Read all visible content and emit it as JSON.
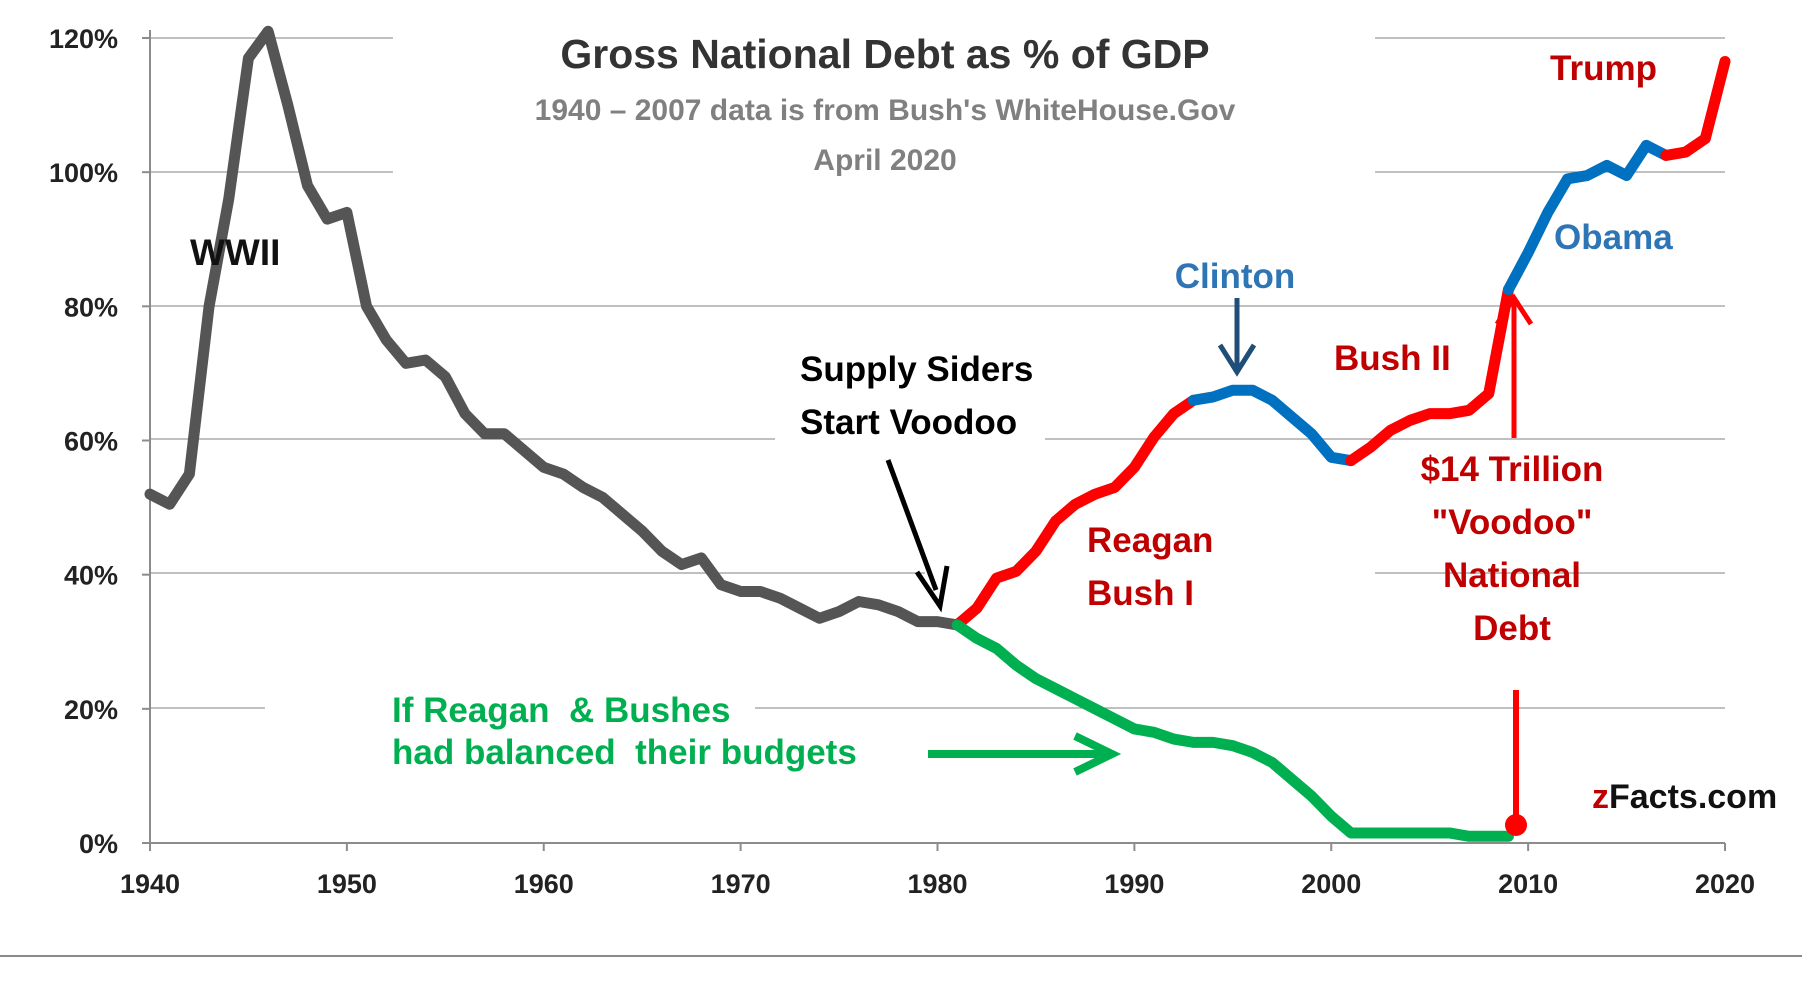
{
  "chart_data": {
    "type": "line",
    "title": "Gross National Debt  as % of GDP",
    "subtitle": "1940 – 2007 data is from Bush's WhiteHouse.Gov",
    "date_note": "April 2020",
    "credit": "zFacts.com",
    "xlim": [
      1940,
      2020
    ],
    "ylim": [
      0,
      120
    ],
    "x_ticks": [
      "1940",
      "1950",
      "1960",
      "1970",
      "1980",
      "1990",
      "2000",
      "2010",
      "2020"
    ],
    "y_ticks": [
      "0%",
      "20%",
      "40%",
      "60%",
      "80%",
      "100%",
      "120%"
    ],
    "grid": true,
    "series": [
      {
        "color": "#555555",
        "points": [
          [
            1940,
            52
          ],
          [
            1941,
            50.5
          ],
          [
            1942,
            55
          ],
          [
            1943,
            80
          ],
          [
            1944,
            96
          ],
          [
            1945,
            117
          ],
          [
            1946,
            121
          ],
          [
            1947,
            110
          ],
          [
            1948,
            98
          ],
          [
            1949,
            93
          ],
          [
            1950,
            94
          ],
          [
            1951,
            80
          ],
          [
            1952,
            75
          ],
          [
            1953,
            71.5
          ],
          [
            1954,
            72
          ],
          [
            1955,
            69.5
          ],
          [
            1956,
            64
          ],
          [
            1957,
            61
          ],
          [
            1958,
            61
          ],
          [
            1959,
            58.5
          ],
          [
            1960,
            56
          ],
          [
            1961,
            55
          ],
          [
            1962,
            53
          ],
          [
            1963,
            51.5
          ],
          [
            1964,
            49
          ],
          [
            1965,
            46.5
          ],
          [
            1966,
            43.5
          ],
          [
            1967,
            41.5
          ],
          [
            1968,
            42.5
          ],
          [
            1969,
            38.5
          ],
          [
            1970,
            37.5
          ],
          [
            1971,
            37.5
          ],
          [
            1972,
            36.5
          ],
          [
            1973,
            35
          ],
          [
            1974,
            33.5
          ],
          [
            1975,
            34.5
          ],
          [
            1976,
            36
          ],
          [
            1977,
            35.5
          ],
          [
            1978,
            34.5
          ],
          [
            1979,
            33
          ],
          [
            1980,
            33
          ],
          [
            1981,
            32.5
          ]
        ]
      },
      {
        "color": "#ff0000",
        "points": [
          [
            1981,
            32.5
          ],
          [
            1982,
            35
          ],
          [
            1983,
            39.5
          ],
          [
            1984,
            40.5
          ],
          [
            1985,
            43.5
          ],
          [
            1986,
            48
          ],
          [
            1987,
            50.5
          ],
          [
            1988,
            52
          ],
          [
            1989,
            53
          ],
          [
            1990,
            56
          ],
          [
            1991,
            60.5
          ],
          [
            1992,
            64
          ],
          [
            1993,
            66
          ]
        ]
      },
      {
        "color": "#0070c0",
        "points": [
          [
            1993,
            66
          ],
          [
            1994,
            66.5
          ],
          [
            1995,
            67.5
          ],
          [
            1996,
            67.5
          ],
          [
            1997,
            66
          ],
          [
            1998,
            63.5
          ],
          [
            1999,
            61
          ],
          [
            2000,
            57.5
          ],
          [
            2001,
            57
          ]
        ]
      },
      {
        "color": "#ff0000",
        "points": [
          [
            2001,
            57
          ],
          [
            2002,
            59
          ],
          [
            2003,
            61.5
          ],
          [
            2004,
            63
          ],
          [
            2005,
            64
          ],
          [
            2006,
            64
          ],
          [
            2007,
            64.5
          ],
          [
            2008,
            67
          ],
          [
            2009,
            82.5
          ]
        ]
      },
      {
        "color": "#0070c0",
        "points": [
          [
            2009,
            82.5
          ],
          [
            2010,
            88
          ],
          [
            2011,
            94
          ],
          [
            2012,
            99
          ],
          [
            2013,
            99.5
          ],
          [
            2014,
            101
          ],
          [
            2015,
            99.5
          ],
          [
            2016,
            104
          ],
          [
            2017,
            102.5
          ]
        ]
      },
      {
        "color": "#ff0000",
        "points": [
          [
            2017,
            102.5
          ],
          [
            2018,
            103
          ],
          [
            2019,
            105
          ],
          [
            2020,
            116.5
          ]
        ]
      },
      {
        "color": "#00b050",
        "points": [
          [
            1981,
            32.5
          ],
          [
            1982,
            30.5
          ],
          [
            1983,
            29
          ],
          [
            1984,
            26.5
          ],
          [
            1985,
            24.5
          ],
          [
            1986,
            23
          ],
          [
            1987,
            21.5
          ],
          [
            1988,
            20
          ],
          [
            1989,
            18.5
          ],
          [
            1990,
            17
          ],
          [
            1991,
            16.5
          ],
          [
            1992,
            15.5
          ],
          [
            1993,
            15
          ],
          [
            1994,
            15
          ],
          [
            1995,
            14.5
          ],
          [
            1996,
            13.5
          ],
          [
            1997,
            12
          ],
          [
            1998,
            9.5
          ],
          [
            1999,
            7
          ],
          [
            2000,
            4
          ],
          [
            2001,
            1.5
          ],
          [
            2002,
            1.5
          ],
          [
            2003,
            1.5
          ],
          [
            2004,
            1.5
          ],
          [
            2005,
            1.5
          ],
          [
            2006,
            1.5
          ],
          [
            2007,
            1
          ],
          [
            2008,
            1
          ],
          [
            2009,
            1
          ]
        ]
      }
    ],
    "annotations": {
      "wwii": "WWII",
      "supply_1": "Supply Siders",
      "supply_2": "Start Voodoo",
      "clinton": "Clinton",
      "reagan": "Reagan",
      "bush1": "Bush I",
      "bush2": "Bush II",
      "obama": "Obama",
      "trump": "Trump",
      "voodoo_1": "$14 Trillion",
      "voodoo_2": "\"Voodoo\"",
      "voodoo_3": "National",
      "voodoo_4": "Debt",
      "balanced_1": "If Reagan  & Bushes",
      "balanced_2": "had balanced  their budgets"
    },
    "colors": {
      "gray": "#555555",
      "red": "#ff0000",
      "blue": "#0070c0",
      "green": "#00b050",
      "dark_red": "#c00000",
      "dark_blue": "#1f4e79",
      "label_blue": "#2e75b6"
    }
  }
}
